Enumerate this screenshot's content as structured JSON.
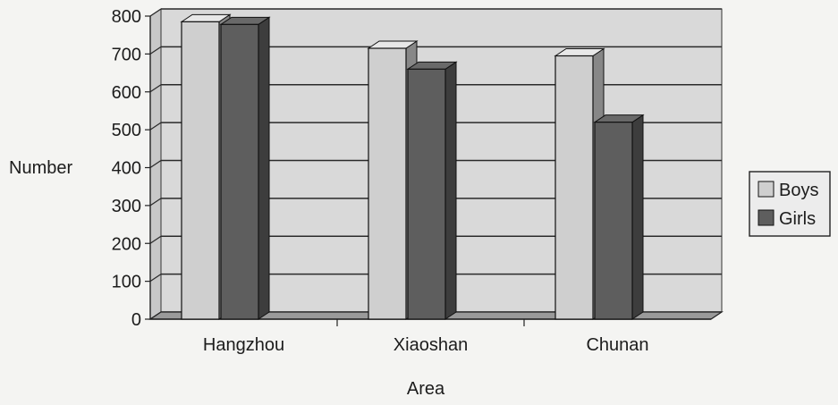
{
  "chart_data": {
    "type": "bar",
    "title": "",
    "xlabel": "Area",
    "ylabel": "Number",
    "categories": [
      "Hangzhou",
      "Xiaoshan",
      "Chunan"
    ],
    "series": [
      {
        "name": "Boys",
        "values": [
          785,
          715,
          695
        ]
      },
      {
        "name": "Girls",
        "values": [
          778,
          660,
          520
        ]
      }
    ],
    "ylim": [
      0,
      800
    ],
    "yticks": [
      "0",
      "100",
      "200",
      "300",
      "400",
      "500",
      "600",
      "700",
      "800"
    ],
    "grid": true,
    "legend_position": "right",
    "colors": {
      "Boys": "#cfcfcf",
      "Girls": "#5e5e5e",
      "plot_wall": "#d9d9d9",
      "gridline": "#2a2a2a"
    }
  }
}
